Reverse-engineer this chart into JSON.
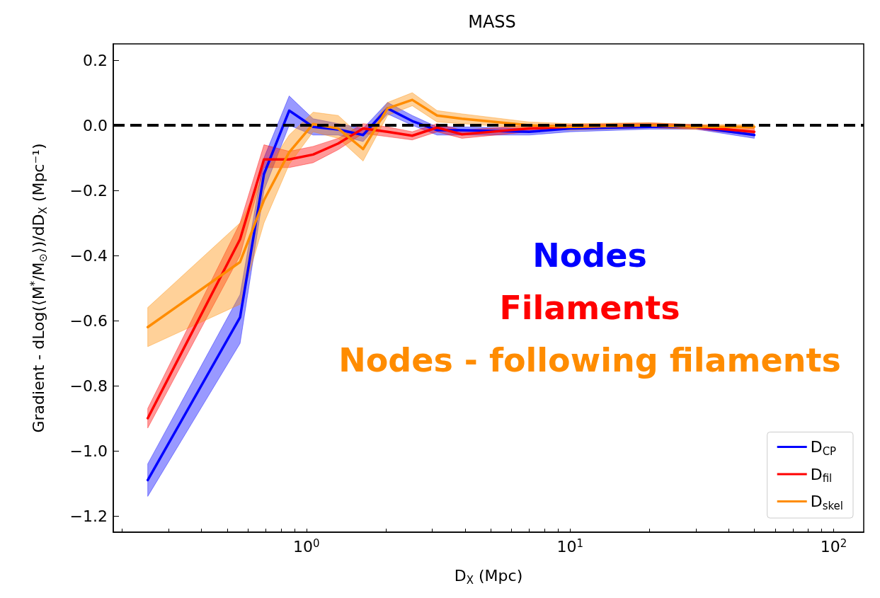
{
  "chart_data": {
    "type": "line",
    "title": "MASS",
    "xlabel": "D$_{X}$ (Mpc)",
    "ylabel": "Gradient - dLog(⟨M$^{*}$/M$_{⊙}$⟩)/dD$_{X}$ (Mpc⁻¹)",
    "x": [
      0.25,
      0.56,
      0.69,
      0.86,
      1.06,
      1.32,
      1.64,
      2.03,
      2.52,
      3.13,
      3.89,
      7,
      10,
      20,
      30,
      50
    ],
    "series": [
      {
        "name": "D$_{CP}$",
        "color": "#0000ff",
        "values": [
          -1.09,
          -0.59,
          -0.15,
          0.045,
          -0.005,
          -0.013,
          -0.03,
          0.052,
          0.013,
          -0.015,
          -0.015,
          -0.02,
          -0.01,
          -0.005,
          -0.005,
          -0.03
        ],
        "lower": [
          -1.14,
          -0.67,
          -0.2,
          0.0,
          -0.03,
          -0.03,
          -0.05,
          0.035,
          0.0,
          -0.03,
          -0.03,
          -0.03,
          -0.02,
          -0.012,
          -0.012,
          -0.04
        ],
        "upper": [
          -1.04,
          -0.52,
          -0.1,
          0.09,
          0.02,
          0.005,
          -0.01,
          0.07,
          0.03,
          -0.005,
          -0.005,
          -0.01,
          0.0,
          0.002,
          0.002,
          -0.02
        ]
      },
      {
        "name": "D$_{fil}$",
        "color": "#ff0000",
        "values": [
          -0.9,
          -0.35,
          -0.105,
          -0.105,
          -0.09,
          -0.056,
          -0.01,
          -0.02,
          -0.032,
          -0.007,
          -0.028,
          -0.01,
          -0.005,
          0.0,
          -0.005,
          -0.02
        ],
        "lower": [
          -0.93,
          -0.4,
          -0.13,
          -0.13,
          -0.115,
          -0.075,
          -0.025,
          -0.035,
          -0.045,
          -0.02,
          -0.04,
          -0.02,
          -0.012,
          -0.007,
          -0.012,
          -0.03
        ],
        "upper": [
          -0.87,
          -0.3,
          -0.06,
          -0.08,
          -0.065,
          -0.04,
          0.005,
          -0.005,
          -0.02,
          0.005,
          -0.015,
          0.0,
          0.002,
          0.007,
          0.002,
          -0.01
        ]
      },
      {
        "name": "D$_{skel}$",
        "color": "#ff8c00",
        "values": [
          -0.62,
          -0.42,
          -0.23,
          -0.083,
          0.004,
          -0.01,
          -0.073,
          0.052,
          0.078,
          0.03,
          0.02,
          0.0,
          -0.005,
          0.0,
          -0.005,
          -0.005
        ],
        "lower": [
          -0.68,
          -0.55,
          -0.3,
          -0.12,
          -0.02,
          -0.04,
          -0.11,
          0.03,
          0.06,
          0.01,
          0.005,
          -0.01,
          -0.015,
          -0.008,
          -0.012,
          -0.012
        ],
        "upper": [
          -0.56,
          -0.3,
          -0.15,
          -0.03,
          0.04,
          0.03,
          -0.04,
          0.07,
          0.1,
          0.045,
          0.035,
          0.01,
          0.005,
          0.008,
          0.002,
          0.002
        ]
      }
    ],
    "xlim": [
      0.185,
      130
    ],
    "ylim": [
      -1.25,
      0.25
    ],
    "xticks": [
      {
        "value": 0.2,
        "label": null
      },
      {
        "value": 0.3,
        "label": null
      },
      {
        "value": 0.4,
        "label": null
      },
      {
        "value": 0.5,
        "label": null
      },
      {
        "value": 0.6,
        "label": null
      },
      {
        "value": 0.7,
        "label": null
      },
      {
        "value": 0.8,
        "label": null
      },
      {
        "value": 0.9,
        "label": null
      },
      {
        "value": 1,
        "label": "10$^{0}$"
      },
      {
        "value": 2,
        "label": null
      },
      {
        "value": 3,
        "label": null
      },
      {
        "value": 4,
        "label": null
      },
      {
        "value": 5,
        "label": null
      },
      {
        "value": 6,
        "label": null
      },
      {
        "value": 7,
        "label": null
      },
      {
        "value": 8,
        "label": null
      },
      {
        "value": 9,
        "label": null
      },
      {
        "value": 10,
        "label": "10$^{1}$"
      },
      {
        "value": 20,
        "label": null
      },
      {
        "value": 30,
        "label": null
      },
      {
        "value": 40,
        "label": null
      },
      {
        "value": 50,
        "label": null
      },
      {
        "value": 60,
        "label": null
      },
      {
        "value": 70,
        "label": null
      },
      {
        "value": 80,
        "label": null
      },
      {
        "value": 90,
        "label": null
      },
      {
        "value": 100,
        "label": "10$^{2}$"
      }
    ],
    "yticks": [
      {
        "value": -1.2,
        "label": "−1.2"
      },
      {
        "value": -1.0,
        "label": "−1.0"
      },
      {
        "value": -0.8,
        "label": "−0.8"
      },
      {
        "value": -0.6,
        "label": "−0.6"
      },
      {
        "value": -0.4,
        "label": "−0.4"
      },
      {
        "value": -0.2,
        "label": "−0.2"
      },
      {
        "value": 0.0,
        "label": "0.0"
      },
      {
        "value": 0.2,
        "label": "0.2"
      }
    ],
    "log": "x",
    "grid": false,
    "legend": "bottom right",
    "marker": "none",
    "line_style": "solid",
    "ref_lines": [
      {
        "axis": "y",
        "value": 0,
        "color": "#000000",
        "line_style": "dashed"
      }
    ],
    "annotations": [
      "Nodes",
      "Filaments",
      "Nodes - following filaments"
    ]
  }
}
